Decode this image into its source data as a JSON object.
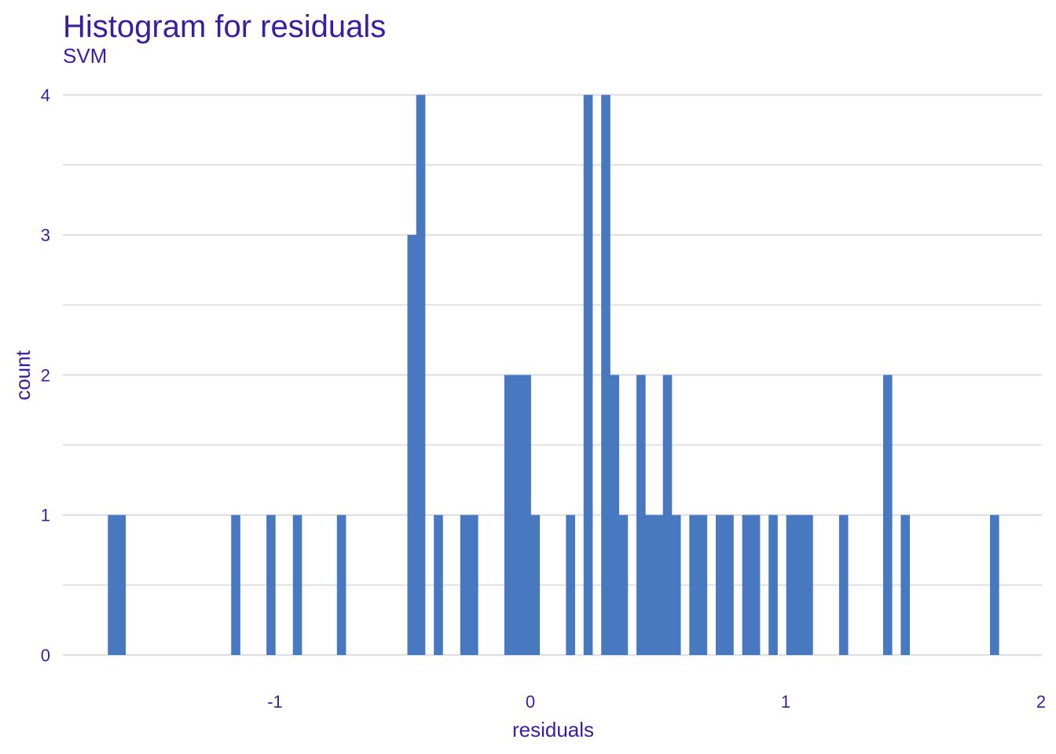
{
  "chart_data": {
    "type": "bar",
    "title": "Histogram for residuals",
    "subtitle": "SVM",
    "xlabel": "residuals",
    "ylabel": "count",
    "xlim": [
      -1.84,
      2.0
    ],
    "ylim": [
      0,
      4
    ],
    "x_ticks": [
      -1,
      0,
      1,
      2
    ],
    "x_tick_labels": [
      "-1",
      "0",
      "1",
      "2"
    ],
    "y_ticks": [
      0,
      1,
      2,
      3,
      4
    ],
    "y_tick_labels": [
      "0",
      "1",
      "2",
      "3",
      "4"
    ],
    "grid": true,
    "bin_width": 0.0345,
    "bars": [
      {
        "x0": -1.6545,
        "x1": -1.62,
        "count": 1
      },
      {
        "x0": -1.62,
        "x1": -1.5855,
        "count": 1
      },
      {
        "x0": -1.1715,
        "x1": -1.137,
        "count": 1
      },
      {
        "x0": -1.0335,
        "x1": -0.999,
        "count": 1
      },
      {
        "x0": -0.93,
        "x1": -0.8955,
        "count": 1
      },
      {
        "x0": -0.7575,
        "x1": -0.723,
        "count": 1
      },
      {
        "x0": -0.4815,
        "x1": -0.447,
        "count": 3
      },
      {
        "x0": -0.447,
        "x1": -0.4125,
        "count": 4
      },
      {
        "x0": -0.378,
        "x1": -0.3435,
        "count": 1
      },
      {
        "x0": -0.2745,
        "x1": -0.24,
        "count": 1
      },
      {
        "x0": -0.24,
        "x1": -0.2055,
        "count": 1
      },
      {
        "x0": -0.102,
        "x1": -0.0675,
        "count": 2
      },
      {
        "x0": -0.0675,
        "x1": -0.033,
        "count": 2
      },
      {
        "x0": -0.033,
        "x1": 0.0015,
        "count": 2
      },
      {
        "x0": 0.0015,
        "x1": 0.036,
        "count": 1
      },
      {
        "x0": 0.1395,
        "x1": 0.174,
        "count": 1
      },
      {
        "x0": 0.2085,
        "x1": 0.243,
        "count": 4
      },
      {
        "x0": 0.2775,
        "x1": 0.312,
        "count": 4
      },
      {
        "x0": 0.312,
        "x1": 0.3465,
        "count": 2
      },
      {
        "x0": 0.3465,
        "x1": 0.381,
        "count": 1
      },
      {
        "x0": 0.4155,
        "x1": 0.45,
        "count": 2
      },
      {
        "x0": 0.45,
        "x1": 0.4845,
        "count": 1
      },
      {
        "x0": 0.4845,
        "x1": 0.519,
        "count": 1
      },
      {
        "x0": 0.519,
        "x1": 0.5535,
        "count": 2
      },
      {
        "x0": 0.5535,
        "x1": 0.588,
        "count": 1
      },
      {
        "x0": 0.6225,
        "x1": 0.657,
        "count": 1
      },
      {
        "x0": 0.657,
        "x1": 0.6915,
        "count": 1
      },
      {
        "x0": 0.726,
        "x1": 0.7605,
        "count": 1
      },
      {
        "x0": 0.7605,
        "x1": 0.795,
        "count": 1
      },
      {
        "x0": 0.8295,
        "x1": 0.864,
        "count": 1
      },
      {
        "x0": 0.864,
        "x1": 0.8985,
        "count": 1
      },
      {
        "x0": 0.933,
        "x1": 0.9675,
        "count": 1
      },
      {
        "x0": 1.002,
        "x1": 1.0365,
        "count": 1
      },
      {
        "x0": 1.0365,
        "x1": 1.071,
        "count": 1
      },
      {
        "x0": 1.071,
        "x1": 1.1055,
        "count": 1
      },
      {
        "x0": 1.209,
        "x1": 1.2435,
        "count": 1
      },
      {
        "x0": 1.3815,
        "x1": 1.416,
        "count": 2
      },
      {
        "x0": 1.4505,
        "x1": 1.485,
        "count": 1
      },
      {
        "x0": 1.8,
        "x1": 1.8345,
        "count": 1
      }
    ]
  },
  "colors": {
    "bar": "#4878bf",
    "text": "#371ea3",
    "grid": "#e1e1e6"
  }
}
